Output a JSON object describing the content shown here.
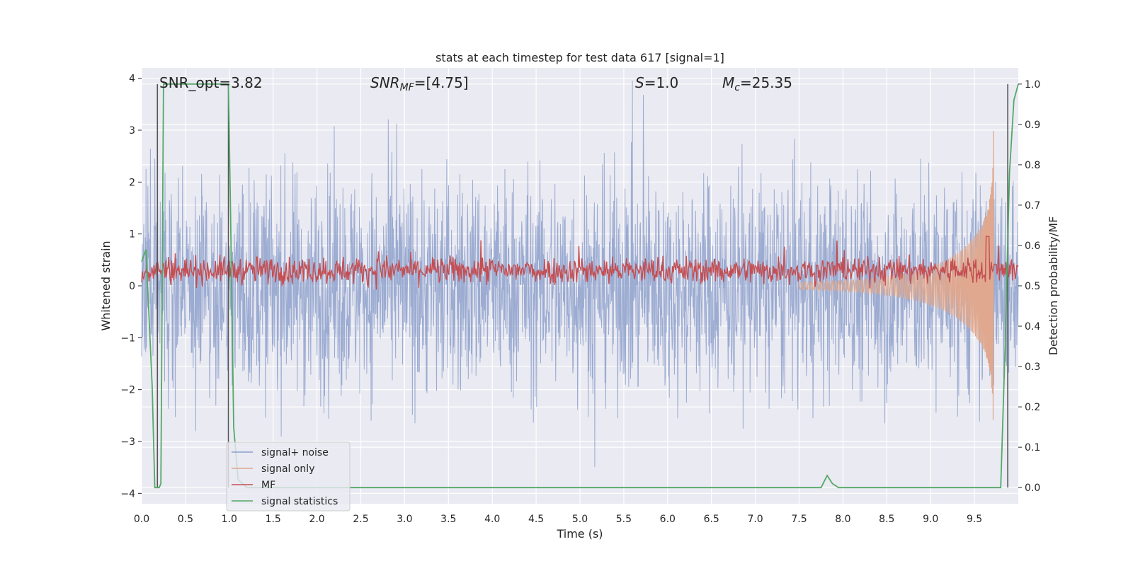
{
  "chart_data": {
    "type": "line",
    "title": "stats at each timestep for test data 617 [signal=1]",
    "xlabel": "Time (s)",
    "ylabel": "Whitened strain",
    "y2label": "Detection probability/MF",
    "xlim": [
      0,
      10
    ],
    "ylim": [
      -4.2,
      4.2
    ],
    "y2lim": [
      -0.04,
      1.04
    ],
    "grid": true,
    "legend_position": "lower-left",
    "xticks": [
      "0.0",
      "0.5",
      "1.0",
      "1.5",
      "2.0",
      "2.5",
      "3.0",
      "3.5",
      "4.0",
      "4.5",
      "5.0",
      "5.5",
      "6.0",
      "6.5",
      "7.0",
      "7.5",
      "8.0",
      "8.5",
      "9.0",
      "9.5"
    ],
    "yticks": [
      "4",
      "3",
      "2",
      "1",
      "0",
      "−1",
      "−2",
      "−3",
      "−4"
    ],
    "y2ticks": [
      "1.0",
      "0.9",
      "0.8",
      "0.7",
      "0.6",
      "0.5",
      "0.4",
      "0.3",
      "0.2",
      "0.1",
      "0.0"
    ],
    "annotations": {
      "snr_opt": "SNR_opt=3.82",
      "snr_mf_base": "SNR",
      "snr_mf_sub": "MF",
      "snr_mf_tail": "=[4.75]",
      "s_base": "S",
      "s_tail": "=1.0",
      "mc_base": "M",
      "mc_sub": "c",
      "mc_tail": "=25.35"
    },
    "markers": [
      0.18,
      0.99,
      9.88
    ],
    "series": [
      {
        "name": "signal+ noise",
        "color": "#8da0cb",
        "description_amplitude": 1.1
      },
      {
        "name": "signal only",
        "color": "#e0a88e"
      },
      {
        "name": "MF",
        "color": "#c44e52"
      },
      {
        "name": "signal statistics",
        "color": "#55a868",
        "x": [
          0.0,
          0.05,
          0.12,
          0.15,
          0.2,
          0.22,
          0.25,
          0.3,
          0.5,
          0.8,
          0.99,
          1.02,
          1.05,
          1.1,
          1.2,
          1.5,
          2.0,
          3.0,
          4.0,
          5.0,
          6.0,
          7.0,
          7.7,
          7.75,
          7.82,
          7.88,
          7.95,
          8.0,
          9.0,
          9.5,
          9.8,
          9.85,
          9.9,
          9.95,
          10.0
        ],
        "y": [
          0.56,
          0.59,
          0.25,
          0.0,
          0.0,
          0.01,
          1.0,
          1.0,
          1.0,
          1.0,
          1.0,
          0.6,
          0.15,
          0.02,
          0.0,
          0.0,
          0.0,
          0.0,
          0.0,
          0.0,
          0.0,
          0.0,
          0.0,
          0.0,
          0.03,
          0.01,
          0.0,
          0.0,
          0.0,
          0.0,
          0.0,
          0.35,
          0.78,
          0.96,
          1.0
        ]
      }
    ]
  }
}
